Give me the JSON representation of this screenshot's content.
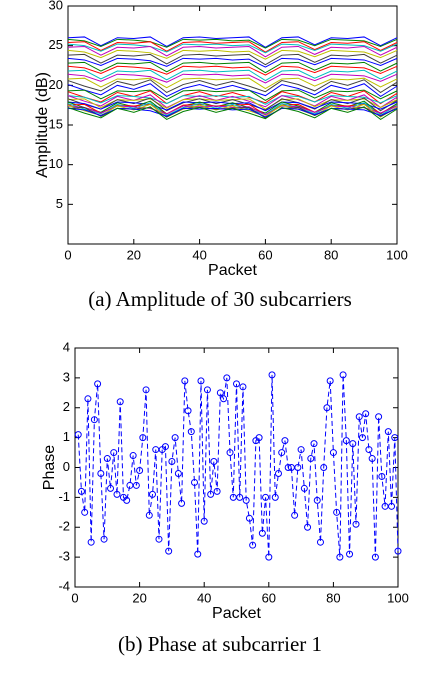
{
  "chart_data": [
    {
      "type": "line",
      "caption": "(a) Amplitude of 30 subcarriers",
      "xlabel": "Packet",
      "ylabel": "Amplitude (dB)",
      "xlim": [
        0,
        100
      ],
      "xticks": [
        0,
        20,
        40,
        60,
        80,
        100
      ],
      "ylim": [
        0,
        30
      ],
      "yticks": [
        5,
        10,
        15,
        20,
        25,
        30
      ],
      "grid": false,
      "x": [
        0,
        5,
        10,
        15,
        20,
        25,
        30,
        35,
        40,
        45,
        50,
        55,
        60,
        65,
        70,
        75,
        80,
        85,
        90,
        95,
        100
      ],
      "series": [
        {
          "color": "#0000ff",
          "values": [
            26,
            26.1,
            25,
            26,
            25.9,
            26.1,
            24.9,
            26,
            26.1,
            25.9,
            26,
            26.1,
            24.8,
            26,
            26.1,
            25.1,
            26,
            25.9,
            26.1,
            25,
            26
          ]
        },
        {
          "color": "#008000",
          "values": [
            25.8,
            25.6,
            24.9,
            25.8,
            25.7,
            25.5,
            24.8,
            25.8,
            25.7,
            25.8,
            25.6,
            25.7,
            24.7,
            25.8,
            25.7,
            25,
            25.8,
            25.7,
            25.6,
            24.9,
            25.8
          ]
        },
        {
          "color": "#ff0000",
          "values": [
            25.4,
            25.5,
            24.4,
            25.4,
            25.3,
            25.5,
            24.3,
            25.4,
            25.5,
            25.3,
            25.4,
            25.5,
            24.2,
            25.4,
            25.5,
            24.5,
            25.4,
            25.3,
            25.5,
            24.4,
            25.4
          ]
        },
        {
          "color": "#00bfbf",
          "values": [
            25.2,
            25,
            24.3,
            25.2,
            25.1,
            24.9,
            24.2,
            25.2,
            25.1,
            25.2,
            25,
            25.1,
            24.1,
            25.2,
            25.1,
            24.4,
            25.2,
            25.1,
            25,
            24.3,
            25.2
          ]
        },
        {
          "color": "#bf00bf",
          "values": [
            24.8,
            24.9,
            23.8,
            24.8,
            24.7,
            24.9,
            23.7,
            24.8,
            24.9,
            24.7,
            24.8,
            24.9,
            23.6,
            24.8,
            24.9,
            23.9,
            24.8,
            24.7,
            24.9,
            23.8,
            24.8
          ]
        },
        {
          "color": "#bfbf00",
          "values": [
            24.4,
            24.2,
            23.5,
            24.4,
            24.3,
            24.1,
            23.4,
            24.4,
            24.3,
            24.4,
            24.2,
            24.3,
            23.3,
            24.4,
            24.3,
            23.6,
            24.4,
            24.3,
            24.2,
            23.5,
            24.4
          ]
        },
        {
          "color": "#404040",
          "values": [
            23.8,
            23.9,
            22.8,
            23.8,
            23.7,
            23.9,
            22.7,
            23.8,
            23.9,
            23.7,
            23.8,
            23.9,
            22.6,
            23.8,
            23.9,
            22.9,
            23.8,
            23.7,
            23.9,
            22.8,
            23.8
          ]
        },
        {
          "color": "#0000ff",
          "values": [
            23.4,
            23.2,
            22.5,
            23.4,
            23.3,
            23.1,
            22.4,
            23.4,
            23.3,
            23.4,
            23.2,
            23.3,
            22.3,
            23.4,
            23.3,
            22.6,
            23.4,
            23.3,
            23.2,
            22.5,
            23.4
          ]
        },
        {
          "color": "#008000",
          "values": [
            22.8,
            22.9,
            21.8,
            22.8,
            22.7,
            22.9,
            21.7,
            22.8,
            22.9,
            22.7,
            22.8,
            22.9,
            21.6,
            22.8,
            22.9,
            21.9,
            22.8,
            22.7,
            22.9,
            21.8,
            22.8
          ]
        },
        {
          "color": "#ff0000",
          "values": [
            22.4,
            22.2,
            21.5,
            22.4,
            22.3,
            22.1,
            21.4,
            22.4,
            22.3,
            22.4,
            22.2,
            22.3,
            21.3,
            22.4,
            22.3,
            21.6,
            22.4,
            22.3,
            22.2,
            21.5,
            22.4
          ]
        },
        {
          "color": "#00bfbf",
          "values": [
            21.8,
            21.9,
            20.8,
            21.8,
            21.7,
            21.9,
            20.7,
            21.8,
            21.9,
            21.7,
            21.8,
            21.9,
            20.6,
            21.8,
            21.9,
            20.9,
            21.8,
            21.7,
            21.9,
            20.8,
            21.8
          ]
        },
        {
          "color": "#bf00bf",
          "values": [
            21.4,
            21.2,
            20.5,
            21.4,
            21.3,
            21.1,
            20.4,
            21.4,
            21.3,
            21.4,
            21.2,
            21.3,
            20.3,
            21.4,
            21.3,
            20.6,
            21.4,
            21.3,
            21.2,
            20.5,
            21.4
          ]
        },
        {
          "color": "#bfbf00",
          "values": [
            20.8,
            20.9,
            19.8,
            20.8,
            20.7,
            20.9,
            19.7,
            20.8,
            20.9,
            20.7,
            20.8,
            20.9,
            19.6,
            20.8,
            20.9,
            19.9,
            20.8,
            20.7,
            20.9,
            19.8,
            20.8
          ]
        },
        {
          "color": "#404040",
          "values": [
            20.6,
            19.9,
            19.3,
            20.5,
            20,
            20.7,
            19.1,
            20.1,
            20.6,
            20,
            20.5,
            19.9,
            19.2,
            20.6,
            20.1,
            19.3,
            20.5,
            20,
            20.7,
            19.1,
            20.4
          ]
        },
        {
          "color": "#0000ff",
          "values": [
            20.1,
            19.4,
            18.8,
            20,
            19.5,
            20.2,
            18.6,
            19.6,
            20.1,
            19.5,
            20,
            19.4,
            18.7,
            20.1,
            19.6,
            18.8,
            20,
            19.5,
            20.2,
            18.6,
            19.9
          ]
        },
        {
          "color": "#008000",
          "values": [
            19.3,
            19.4,
            18.3,
            19.3,
            19.2,
            19.4,
            18.2,
            19.3,
            19.4,
            19.2,
            19.3,
            19.4,
            18.1,
            19.3,
            19.4,
            18.4,
            19.3,
            19.2,
            19.4,
            18.3,
            19.3
          ]
        },
        {
          "color": "#ff0000",
          "values": [
            19.2,
            18.5,
            17.9,
            19.1,
            18.6,
            19.3,
            17.7,
            18.7,
            19.2,
            18.6,
            19.1,
            18.5,
            17.8,
            19.2,
            18.7,
            17.9,
            19.1,
            18.6,
            19.3,
            17.7,
            19
          ]
        },
        {
          "color": "#00bfbf",
          "values": [
            18.7,
            18.5,
            17.8,
            18.7,
            18.6,
            18.4,
            17.7,
            18.7,
            18.6,
            18.7,
            18.5,
            18.6,
            17.6,
            18.7,
            18.6,
            17.9,
            18.7,
            18.6,
            18.5,
            17.8,
            18.7
          ]
        },
        {
          "color": "#bf00bf",
          "values": [
            18.7,
            18,
            17.4,
            18.6,
            18.1,
            18.8,
            17.2,
            18.2,
            18.7,
            18.1,
            18.6,
            18,
            17.3,
            18.7,
            18.2,
            17.4,
            18.6,
            18.1,
            18.8,
            17.2,
            18.5
          ]
        },
        {
          "color": "#bfbf00",
          "values": [
            18.2,
            18.3,
            17.2,
            18.2,
            18.1,
            18.3,
            17.1,
            18.2,
            18.3,
            18.1,
            18.2,
            18.3,
            17,
            18.2,
            18.3,
            17.3,
            18.2,
            18.1,
            18.3,
            17.2,
            18.2
          ]
        },
        {
          "color": "#404040",
          "values": [
            18.3,
            17.6,
            17,
            18.2,
            17.7,
            18.4,
            16.8,
            17.8,
            18.3,
            17.7,
            18.2,
            17.6,
            16.9,
            18.3,
            17.8,
            17,
            18.2,
            17.7,
            18.4,
            16.8,
            18.1
          ]
        },
        {
          "color": "#0000ff",
          "values": [
            17.9,
            17.7,
            17,
            17.9,
            17.8,
            17.6,
            16.9,
            17.9,
            17.8,
            17.9,
            17.7,
            17.8,
            16.8,
            17.9,
            17.8,
            17.1,
            17.9,
            17.8,
            17.7,
            17,
            17.9
          ]
        },
        {
          "color": "#008000",
          "values": [
            17.9,
            17.2,
            16.6,
            17.8,
            17.3,
            18,
            16.4,
            17.4,
            17.9,
            17.3,
            17.8,
            17.2,
            16.5,
            17.9,
            17.4,
            16.6,
            17.8,
            17.3,
            18,
            16.4,
            17.7
          ]
        },
        {
          "color": "#ff0000",
          "values": [
            17.5,
            17.6,
            16.5,
            17.5,
            17.4,
            17.6,
            16.4,
            17.5,
            17.6,
            17.4,
            17.5,
            17.6,
            16.3,
            17.5,
            17.6,
            16.6,
            17.5,
            17.4,
            17.6,
            16.5,
            17.5
          ]
        },
        {
          "color": "#00bfbf",
          "values": [
            17.7,
            17,
            16.4,
            17.6,
            17.1,
            17.8,
            16.2,
            17.2,
            17.7,
            17.1,
            17.6,
            17,
            16.3,
            17.7,
            17.2,
            16.4,
            17.6,
            17.1,
            17.8,
            16.2,
            17.5
          ]
        },
        {
          "color": "#bf00bf",
          "values": [
            17.4,
            17.2,
            16.5,
            17.4,
            17.3,
            17.1,
            16.4,
            17.4,
            17.3,
            17.4,
            17.2,
            17.3,
            16.3,
            17.4,
            17.3,
            16.6,
            17.4,
            17.3,
            17.2,
            16.5,
            17.4
          ]
        },
        {
          "color": "#bfbf00",
          "values": [
            17.5,
            16.8,
            16.2,
            17.4,
            16.9,
            17.6,
            16,
            17,
            17.5,
            16.9,
            17.4,
            16.8,
            16.1,
            17.5,
            17,
            16.2,
            17.4,
            16.9,
            17.6,
            16,
            17.3
          ]
        },
        {
          "color": "#404040",
          "values": [
            17.1,
            17.2,
            16.1,
            17.1,
            17,
            17.2,
            16,
            17.1,
            17.2,
            17,
            17.1,
            17.2,
            15.9,
            17.1,
            17.2,
            16.2,
            17.1,
            17,
            17.2,
            16.1,
            17.1
          ]
        },
        {
          "color": "#0000ff",
          "values": [
            17.1,
            16.9,
            16.2,
            17.1,
            17,
            16.8,
            16.1,
            17.1,
            17,
            17.1,
            16.9,
            17,
            16,
            17.1,
            17,
            16.3,
            17.1,
            17,
            16.9,
            16.2,
            17.1
          ]
        },
        {
          "color": "#008000",
          "values": [
            17.2,
            16.5,
            15.9,
            17.1,
            16.6,
            17.3,
            15.7,
            16.7,
            17.2,
            16.6,
            17.1,
            16.5,
            15.8,
            17.2,
            16.7,
            15.9,
            17.1,
            16.6,
            17.3,
            15.7,
            17
          ]
        }
      ]
    },
    {
      "type": "line",
      "caption": "(b) Phase at subcarrier 1",
      "xlabel": "Packet",
      "ylabel": "Phase",
      "xlim": [
        0,
        100
      ],
      "xticks": [
        0,
        20,
        40,
        60,
        80,
        100
      ],
      "ylim": [
        -4,
        4
      ],
      "yticks": [
        -4,
        -3,
        -2,
        -1,
        0,
        1,
        2,
        3,
        4
      ],
      "grid": false,
      "marker": "o",
      "linestyle": "dashed",
      "x": [
        1,
        2,
        3,
        4,
        5,
        6,
        7,
        8,
        9,
        10,
        11,
        12,
        13,
        14,
        15,
        16,
        17,
        18,
        19,
        20,
        21,
        22,
        23,
        24,
        25,
        26,
        27,
        28,
        29,
        30,
        31,
        32,
        33,
        34,
        35,
        36,
        37,
        38,
        39,
        40,
        41,
        42,
        43,
        44,
        45,
        46,
        47,
        48,
        49,
        50,
        51,
        52,
        53,
        54,
        55,
        56,
        57,
        58,
        59,
        60,
        61,
        62,
        63,
        64,
        65,
        66,
        67,
        68,
        69,
        70,
        71,
        72,
        73,
        74,
        75,
        76,
        77,
        78,
        79,
        80,
        81,
        82,
        83,
        84,
        85,
        86,
        87,
        88,
        89,
        90,
        91,
        92,
        93,
        94,
        95,
        96,
        97,
        98,
        99,
        100
      ],
      "series": [
        {
          "color": "#0000ff",
          "values": [
            1.1,
            -0.8,
            -1.5,
            2.3,
            -2.5,
            1.6,
            2.8,
            -0.2,
            -2.4,
            0.3,
            -0.7,
            0.5,
            -0.9,
            2.2,
            -1.0,
            -1.1,
            -0.6,
            0.4,
            -0.6,
            -0.1,
            1.0,
            2.6,
            -1.6,
            -0.9,
            0.6,
            -2.4,
            0.6,
            0.7,
            -2.8,
            0.2,
            1.0,
            -0.2,
            -1.2,
            2.9,
            1.9,
            1.2,
            -0.5,
            -2.9,
            2.9,
            -1.8,
            2.6,
            -0.9,
            0.2,
            -0.8,
            2.5,
            2.3,
            3.0,
            0.5,
            -1.0,
            2.8,
            -1.0,
            2.7,
            -1.1,
            -1.7,
            -2.6,
            0.9,
            1.0,
            -2.2,
            -1.0,
            -3.0,
            3.1,
            -1.0,
            -0.2,
            0.5,
            0.9,
            0.0,
            0.0,
            -1.6,
            0.0,
            0.6,
            -0.7,
            -2.0,
            0.3,
            0.8,
            -1.1,
            -2.5,
            0.0,
            2.0,
            2.9,
            0.5,
            -1.5,
            -3.0,
            3.1,
            0.9,
            -2.9,
            0.8,
            -1.9,
            1.7,
            1.0,
            1.8,
            0.6,
            0.3,
            -3.0,
            1.7,
            -0.3,
            -1.3,
            1.2,
            -1.3,
            1.0,
            -2.8
          ]
        }
      ]
    }
  ]
}
